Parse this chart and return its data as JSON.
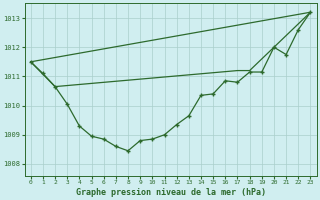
{
  "title": "Graphe pression niveau de la mer (hPa)",
  "bg_color": "#d0eef0",
  "line_color": "#2d6a2d",
  "grid_color": "#aacfcc",
  "xlim": [
    -0.5,
    23.5
  ],
  "ylim": [
    1007.6,
    1013.5
  ],
  "yticks": [
    1008,
    1009,
    1010,
    1011,
    1012,
    1013
  ],
  "xticks": [
    0,
    1,
    2,
    3,
    4,
    5,
    6,
    7,
    8,
    9,
    10,
    11,
    12,
    13,
    14,
    15,
    16,
    17,
    18,
    19,
    20,
    21,
    22,
    23
  ],
  "series1_x": [
    0,
    1,
    2,
    3,
    4,
    5,
    6,
    7,
    8,
    9,
    10,
    11,
    12,
    13,
    14,
    15,
    16,
    17,
    18,
    19,
    20,
    21,
    22,
    23
  ],
  "series1_y": [
    1011.5,
    1011.1,
    1010.65,
    1010.05,
    1009.3,
    1008.95,
    1008.85,
    1008.6,
    1008.45,
    1008.8,
    1008.85,
    1009.0,
    1009.35,
    1009.65,
    1010.35,
    1010.4,
    1010.85,
    1010.8,
    1011.15,
    1011.15,
    1012.0,
    1011.75,
    1012.6,
    1013.2
  ],
  "series2_x": [
    0,
    23
  ],
  "series2_y": [
    1011.5,
    1013.2
  ],
  "series3_x": [
    0,
    2,
    17,
    18,
    23
  ],
  "series3_y": [
    1011.5,
    1010.65,
    1011.2,
    1011.2,
    1013.2
  ]
}
